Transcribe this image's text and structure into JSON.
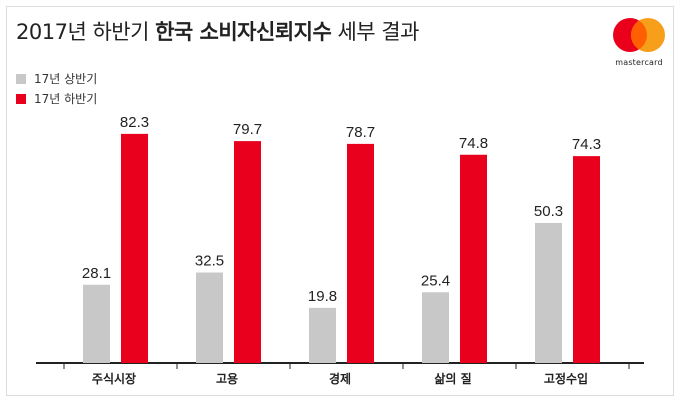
{
  "header": {
    "title_light": "2017년 하반기",
    "title_bold": "한국 소비자신뢰지수",
    "title_tail": "세부 결과"
  },
  "logo": {
    "text": "mastercard",
    "icon": "mastercard-logo-icon"
  },
  "colors": {
    "series1": "#c8c8c8",
    "series2": "#e8001c",
    "axis": "#222222",
    "text": "#222222"
  },
  "chart_data": {
    "type": "bar",
    "title": "2017년 하반기 한국 소비자신뢰지수 세부 결과",
    "categories": [
      "주식시장",
      "고용",
      "경제",
      "삶의 질",
      "고정수입"
    ],
    "series": [
      {
        "name": "17년 상반기",
        "values": [
          28.1,
          32.5,
          19.8,
          25.4,
          50.3
        ]
      },
      {
        "name": "17년 하반기",
        "values": [
          82.3,
          79.7,
          78.7,
          74.8,
          74.3
        ]
      }
    ],
    "ylim": [
      0,
      88
    ],
    "grid": false,
    "legend": "top-left"
  }
}
